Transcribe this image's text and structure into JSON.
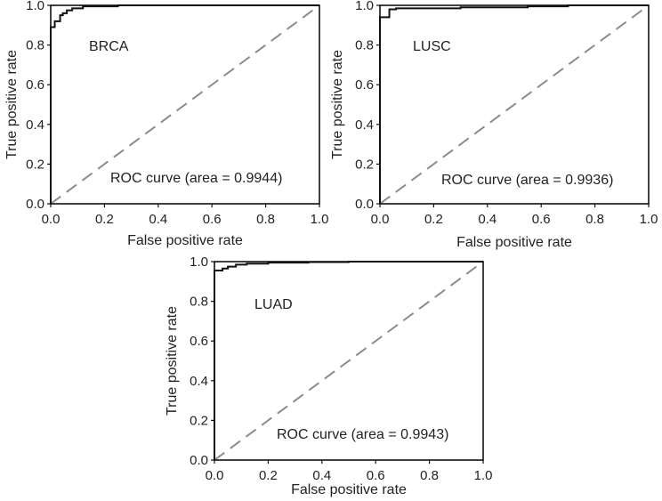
{
  "chart_data": [
    {
      "type": "line",
      "panel_label": "BRCA",
      "annotation": "ROC curve (area = 0.9944)",
      "xlabel": "False positive rate",
      "ylabel": "True positive rate",
      "xlim": [
        0.0,
        1.0
      ],
      "ylim": [
        0.0,
        1.0
      ],
      "xticks": [
        "0.0",
        "0.2",
        "0.4",
        "0.6",
        "0.8",
        "1.0"
      ],
      "yticks": [
        "0.0",
        "0.2",
        "0.4",
        "0.6",
        "0.8",
        "1.0"
      ],
      "grid": false,
      "chance_line": {
        "x": [
          0,
          1
        ],
        "y": [
          0,
          1
        ],
        "style": "dashed",
        "color": "#8c8c8c"
      },
      "roc_curve": {
        "color": "#111111",
        "x": [
          0.0,
          0.0,
          0.015,
          0.015,
          0.035,
          0.035,
          0.045,
          0.045,
          0.06,
          0.06,
          0.08,
          0.08,
          0.12,
          0.12,
          0.25,
          0.25,
          1.0
        ],
        "y": [
          0.0,
          0.89,
          0.89,
          0.92,
          0.92,
          0.95,
          0.95,
          0.96,
          0.96,
          0.975,
          0.975,
          0.985,
          0.985,
          0.995,
          0.995,
          1.0,
          1.0
        ]
      }
    },
    {
      "type": "line",
      "panel_label": "LUSC",
      "annotation": "ROC curve (area = 0.9936)",
      "xlabel": "False positive rate",
      "ylabel": "True positive rate",
      "xlim": [
        0.0,
        1.0
      ],
      "ylim": [
        0.0,
        1.0
      ],
      "xticks": [
        "0.0",
        "0.2",
        "0.4",
        "0.6",
        "0.8",
        "1.0"
      ],
      "yticks": [
        "0.0",
        "0.2",
        "0.4",
        "0.6",
        "0.8",
        "1.0"
      ],
      "grid": false,
      "chance_line": {
        "x": [
          0,
          1
        ],
        "y": [
          0,
          1
        ],
        "style": "dashed",
        "color": "#8c8c8c"
      },
      "roc_curve": {
        "color": "#111111",
        "x": [
          0.0,
          0.0,
          0.035,
          0.035,
          0.06,
          0.06,
          0.3,
          0.3,
          0.55,
          0.55,
          0.7,
          0.7,
          1.0
        ],
        "y": [
          0.0,
          0.94,
          0.94,
          0.98,
          0.98,
          0.985,
          0.985,
          0.99,
          0.99,
          0.995,
          0.995,
          1.0,
          1.0
        ]
      }
    },
    {
      "type": "line",
      "panel_label": "LUAD",
      "annotation": "ROC curve (area = 0.9943)",
      "xlabel": "False positive rate",
      "ylabel": "True positive rate",
      "xlim": [
        0.0,
        1.0
      ],
      "ylim": [
        0.0,
        1.0
      ],
      "xticks": [
        "0.0",
        "0.2",
        "0.4",
        "0.6",
        "0.8",
        "1.0"
      ],
      "yticks": [
        "0.0",
        "0.2",
        "0.4",
        "0.6",
        "0.8",
        "1.0"
      ],
      "grid": false,
      "chance_line": {
        "x": [
          0,
          1
        ],
        "y": [
          0,
          1
        ],
        "style": "dashed",
        "color": "#8c8c8c"
      },
      "roc_curve": {
        "color": "#111111",
        "x": [
          0.0,
          0.0,
          0.03,
          0.03,
          0.05,
          0.05,
          0.08,
          0.08,
          0.12,
          0.12,
          0.2,
          0.2,
          0.35,
          0.35,
          0.5,
          0.5,
          1.0
        ],
        "y": [
          0.0,
          0.955,
          0.955,
          0.965,
          0.965,
          0.975,
          0.975,
          0.985,
          0.985,
          0.99,
          0.99,
          0.995,
          0.995,
          0.998,
          0.998,
          1.0,
          1.0
        ]
      }
    }
  ]
}
